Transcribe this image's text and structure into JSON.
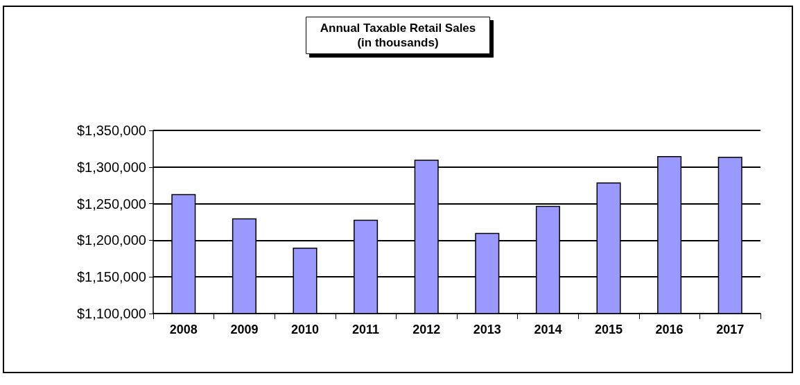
{
  "chart_data": {
    "type": "bar",
    "title": "Annual Taxable Retail Sales\n(in thousands)",
    "categories": [
      "2008",
      "2009",
      "2010",
      "2011",
      "2012",
      "2013",
      "2014",
      "2015",
      "2016",
      "2017"
    ],
    "values": [
      1263000,
      1230000,
      1190000,
      1228000,
      1310000,
      1210000,
      1247000,
      1279000,
      1315000,
      1314000
    ],
    "color": "#9999ff",
    "ylim": [
      1100000,
      1350000
    ],
    "yticks": [
      {
        "value": 1100000,
        "label": "$1,100,000"
      },
      {
        "value": 1150000,
        "label": "$1,150,000"
      },
      {
        "value": 1200000,
        "label": "$1,200,000"
      },
      {
        "value": 1250000,
        "label": "$1,250,000"
      },
      {
        "value": 1300000,
        "label": "$1,300,000"
      },
      {
        "value": 1350000,
        "label": "$1,350,000"
      }
    ],
    "grid": "y"
  }
}
